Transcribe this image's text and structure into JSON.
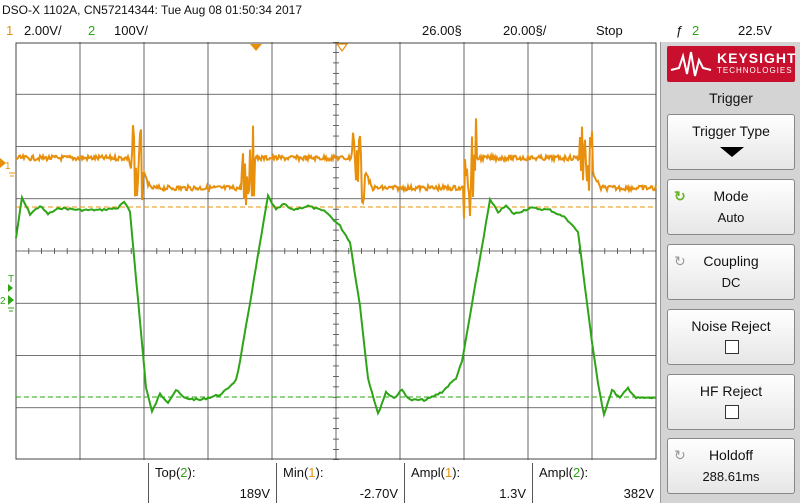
{
  "title_bar": {
    "text": "DSO-X 1102A, CN57214344: Tue Aug 08 01:50:34 2017"
  },
  "status": {
    "ch1_num": "1",
    "ch1_scale": "2.00V/",
    "ch2_num": "2",
    "ch2_scale": "100V/",
    "time_delay": "26.00§",
    "time_scale": "20.00§/",
    "run_state": "Stop",
    "trigger_icon": "ƒ",
    "trigger_source": "2",
    "trigger_level": "22.5V"
  },
  "scope": {
    "ch1_marker": "1",
    "ch2_marker": "2",
    "trig_marker": "T",
    "colors": {
      "ch1": "#e8900c",
      "ch2": "#2da516",
      "grid": "#444444"
    }
  },
  "measurements": [
    {
      "label_prefix": "Top(",
      "channel": "2",
      "label_suffix": "):",
      "value": "189V",
      "channel_color": "#2da516"
    },
    {
      "label_prefix": "Min(",
      "channel": "1",
      "label_suffix": "):",
      "value": "-2.70V",
      "channel_color": "#e8900c"
    },
    {
      "label_prefix": "Ampl(",
      "channel": "1",
      "label_suffix": "):",
      "value": "1.3V",
      "channel_color": "#e8900c"
    },
    {
      "label_prefix": "Ampl(",
      "channel": "2",
      "label_suffix": "):",
      "value": "382V",
      "channel_color": "#2da516"
    }
  ],
  "softkeys": {
    "logo_line1": "KEYSIGHT",
    "logo_line2": "TECHNOLOGIES",
    "menu_title": "Trigger",
    "trigger_type": {
      "label": "Trigger Type"
    },
    "mode": {
      "label": "Mode",
      "value": "Auto",
      "icon": "rotate-icon"
    },
    "coupling": {
      "label": "Coupling",
      "value": "DC",
      "icon": "rotate-icon"
    },
    "noise_reject": {
      "label": "Noise Reject"
    },
    "hf_reject": {
      "label": "HF Reject"
    },
    "holdoff": {
      "label": "Holdoff",
      "value": "288.61ms",
      "icon": "rotate-icon"
    }
  }
}
